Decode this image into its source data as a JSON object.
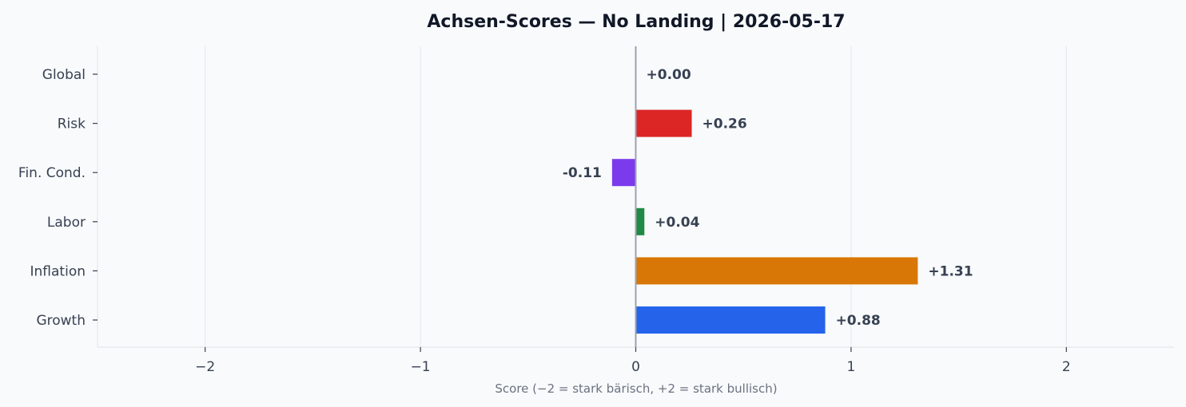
{
  "chart_data": {
    "type": "bar",
    "orientation": "horizontal",
    "title": "Achsen-Scores — No Landing | 2026-05-17",
    "xlabel": "Score (−2 = stark bärisch, +2 = stark bullisch)",
    "ylabel": "",
    "xlim": [
      -2.5,
      2.5
    ],
    "xticks": [
      -2,
      -1,
      0,
      1,
      2
    ],
    "xtick_labels": [
      "−2",
      "−1",
      "0",
      "1",
      "2"
    ],
    "grid": true,
    "categories": [
      "Global",
      "Risk",
      "Fin. Cond.",
      "Labor",
      "Inflation",
      "Growth"
    ],
    "values": [
      0.0,
      0.26,
      -0.11,
      0.04,
      1.31,
      0.88
    ],
    "value_labels": [
      "+0.00",
      "+0.26",
      "-0.11",
      "+0.04",
      "+1.31",
      "+0.88"
    ],
    "colors": [
      "#6b7280",
      "#dc2626",
      "#7c3aed",
      "#1e8a44",
      "#d97706",
      "#2563eb"
    ]
  }
}
